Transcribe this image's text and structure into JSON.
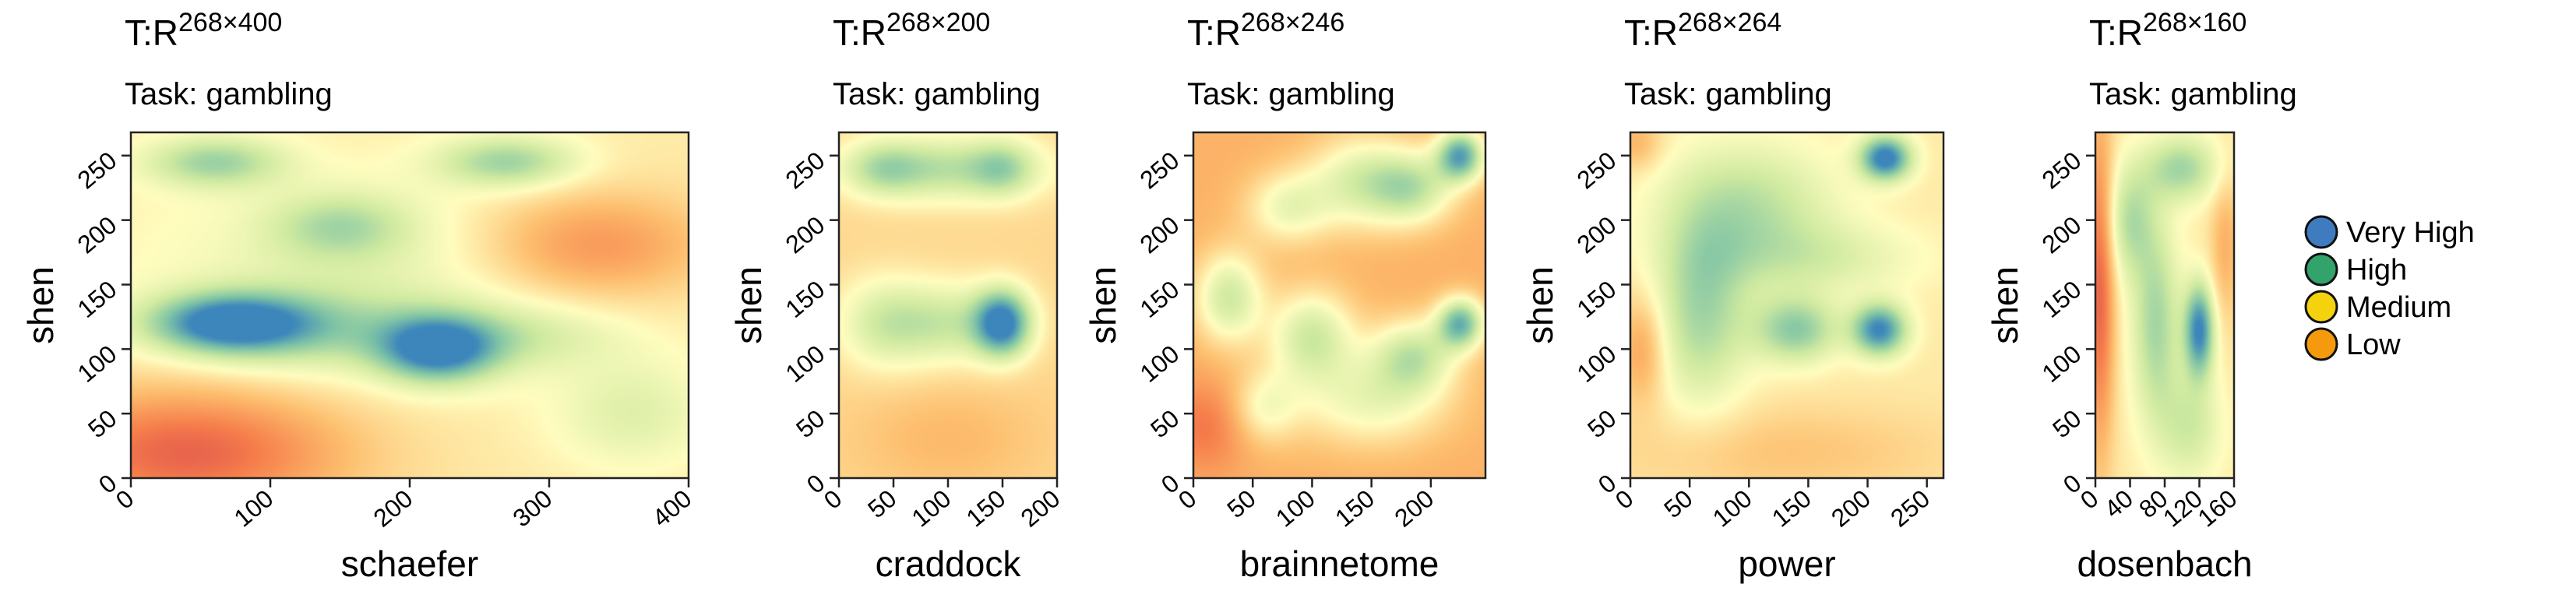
{
  "legend": {
    "items": [
      {
        "label": "Very High",
        "color": "#3F7CBF"
      },
      {
        "label": "High",
        "color": "#33A36C"
      },
      {
        "label": "Medium",
        "color": "#F4D20E"
      },
      {
        "label": "Low",
        "color": "#F59A0C"
      }
    ]
  },
  "colorscale": [
    "#D33E4F",
    "#F67E4B",
    "#FDBF6F",
    "#FFFDBF",
    "#CDE9A0",
    "#7FC4A5",
    "#3C86BC"
  ],
  "chart_data": [
    {
      "type": "heatmap",
      "title_main": "T:R",
      "title_sup": "268×400",
      "subtitle": "Task: gambling",
      "xlabel": "schaefer",
      "ylabel": "shen",
      "xlim": [
        0,
        400
      ],
      "ylim": [
        0,
        268
      ],
      "xticks": [
        0,
        100,
        200,
        300,
        400
      ],
      "xtick_labels": [
        "0",
        "100",
        "200",
        "300",
        "400"
      ],
      "yticks": [
        0,
        50,
        100,
        150,
        200,
        250
      ],
      "ytick_labels": [
        "0",
        "50",
        "100",
        "150",
        "200",
        "250"
      ],
      "base_level": 0.45,
      "blobs": [
        {
          "x": 70,
          "y": 120,
          "sx": 40,
          "sy": 16,
          "a": 0.55
        },
        {
          "x": 220,
          "y": 100,
          "sx": 30,
          "sy": 18,
          "a": 0.55
        },
        {
          "x": 130,
          "y": 115,
          "sx": 60,
          "sy": 22,
          "a": 0.2
        },
        {
          "x": 280,
          "y": 110,
          "sx": 50,
          "sy": 18,
          "a": 0.15
        },
        {
          "x": 60,
          "y": 245,
          "sx": 35,
          "sy": 14,
          "a": 0.3
        },
        {
          "x": 270,
          "y": 245,
          "sx": 35,
          "sy": 14,
          "a": 0.3
        },
        {
          "x": 150,
          "y": 195,
          "sx": 35,
          "sy": 18,
          "a": 0.22
        },
        {
          "x": 170,
          "y": 160,
          "sx": 120,
          "sy": 55,
          "a": 0.12
        },
        {
          "x": 40,
          "y": 20,
          "sx": 80,
          "sy": 35,
          "a": -0.35
        },
        {
          "x": 330,
          "y": 180,
          "sx": 60,
          "sy": 30,
          "a": -0.25
        },
        {
          "x": 360,
          "y": 50,
          "sx": 40,
          "sy": 30,
          "a": 0.15
        }
      ]
    },
    {
      "type": "heatmap",
      "title_main": "T:R",
      "title_sup": "268×200",
      "subtitle": "Task: gambling",
      "xlabel": "craddock",
      "ylabel": "shen",
      "xlim": [
        0,
        200
      ],
      "ylim": [
        0,
        268
      ],
      "xticks": [
        0,
        50,
        100,
        150,
        200
      ],
      "xtick_labels": [
        "0",
        "50",
        "100",
        "150",
        "200"
      ],
      "yticks": [
        0,
        50,
        100,
        150,
        200,
        250
      ],
      "ytick_labels": [
        "0",
        "50",
        "100",
        "150",
        "200",
        "250"
      ],
      "base_level": 0.4,
      "blobs": [
        {
          "x": 150,
          "y": 120,
          "sx": 18,
          "sy": 18,
          "a": 0.6
        },
        {
          "x": 100,
          "y": 120,
          "sx": 40,
          "sy": 22,
          "a": 0.25
        },
        {
          "x": 40,
          "y": 120,
          "sx": 30,
          "sy": 25,
          "a": 0.2
        },
        {
          "x": 100,
          "y": 240,
          "sx": 60,
          "sy": 18,
          "a": 0.3
        },
        {
          "x": 150,
          "y": 240,
          "sx": 20,
          "sy": 15,
          "a": 0.2
        },
        {
          "x": 40,
          "y": 240,
          "sx": 25,
          "sy": 15,
          "a": 0.2
        },
        {
          "x": 100,
          "y": 30,
          "sx": 60,
          "sy": 30,
          "a": -0.08
        }
      ]
    },
    {
      "type": "heatmap",
      "title_main": "T:R",
      "title_sup": "268×246",
      "subtitle": "Task: gambling",
      "xlabel": "brainnetome",
      "ylabel": "shen",
      "xlim": [
        0,
        246
      ],
      "ylim": [
        0,
        268
      ],
      "xticks": [
        0,
        50,
        100,
        150,
        200
      ],
      "xtick_labels": [
        "0",
        "50",
        "100",
        "150",
        "200"
      ],
      "yticks": [
        0,
        50,
        100,
        150,
        200,
        250
      ],
      "ytick_labels": [
        "0",
        "50",
        "100",
        "150",
        "200",
        "250"
      ],
      "base_level": 0.3,
      "blobs": [
        {
          "x": 225,
          "y": 250,
          "sx": 14,
          "sy": 14,
          "a": 0.6
        },
        {
          "x": 225,
          "y": 120,
          "sx": 14,
          "sy": 14,
          "a": 0.55
        },
        {
          "x": 185,
          "y": 225,
          "sx": 25,
          "sy": 20,
          "a": 0.35
        },
        {
          "x": 185,
          "y": 95,
          "sx": 25,
          "sy": 20,
          "a": 0.35
        },
        {
          "x": 100,
          "y": 110,
          "sx": 25,
          "sy": 25,
          "a": 0.35
        },
        {
          "x": 30,
          "y": 140,
          "sx": 20,
          "sy": 25,
          "a": 0.35
        },
        {
          "x": 140,
          "y": 230,
          "sx": 30,
          "sy": 25,
          "a": 0.3
        },
        {
          "x": 80,
          "y": 210,
          "sx": 25,
          "sy": 20,
          "a": 0.25
        },
        {
          "x": 150,
          "y": 60,
          "sx": 45,
          "sy": 25,
          "a": 0.25
        },
        {
          "x": 60,
          "y": 55,
          "sx": 20,
          "sy": 20,
          "a": 0.2
        },
        {
          "x": 10,
          "y": 40,
          "sx": 25,
          "sy": 25,
          "a": -0.15
        }
      ]
    },
    {
      "type": "heatmap",
      "title_main": "T:R",
      "title_sup": "268×264",
      "subtitle": "Task: gambling",
      "xlabel": "power",
      "ylabel": "shen",
      "xlim": [
        0,
        264
      ],
      "ylim": [
        0,
        268
      ],
      "xticks": [
        0,
        50,
        100,
        150,
        200,
        250
      ],
      "xtick_labels": [
        "0",
        "50",
        "100",
        "150",
        "200",
        "250"
      ],
      "yticks": [
        0,
        50,
        100,
        150,
        200,
        250
      ],
      "ytick_labels": [
        "0",
        "50",
        "100",
        "150",
        "200",
        "250"
      ],
      "base_level": 0.45,
      "blobs": [
        {
          "x": 215,
          "y": 248,
          "sx": 15,
          "sy": 12,
          "a": 0.6
        },
        {
          "x": 210,
          "y": 115,
          "sx": 16,
          "sy": 14,
          "a": 0.55
        },
        {
          "x": 140,
          "y": 115,
          "sx": 25,
          "sy": 18,
          "a": 0.35
        },
        {
          "x": 60,
          "y": 130,
          "sx": 28,
          "sy": 50,
          "a": 0.3
        },
        {
          "x": 100,
          "y": 210,
          "sx": 50,
          "sy": 35,
          "a": 0.25
        },
        {
          "x": 160,
          "y": 170,
          "sx": 60,
          "sy": 20,
          "a": 0.15
        },
        {
          "x": 10,
          "y": 100,
          "sx": 15,
          "sy": 30,
          "a": -0.2
        },
        {
          "x": 130,
          "y": 20,
          "sx": 100,
          "sy": 25,
          "a": -0.1
        },
        {
          "x": 5,
          "y": 260,
          "sx": 15,
          "sy": 15,
          "a": -0.15
        }
      ]
    },
    {
      "type": "heatmap",
      "title_main": "T:R",
      "title_sup": "268×160",
      "subtitle": "Task: gambling",
      "xlabel": "dosenbach",
      "ylabel": "shen",
      "xlim": [
        0,
        160
      ],
      "ylim": [
        0,
        268
      ],
      "xticks": [
        0,
        40,
        80,
        120,
        160
      ],
      "xtick_labels": [
        "0",
        "40",
        "80",
        "120",
        "160"
      ],
      "yticks": [
        0,
        50,
        100,
        150,
        200,
        250
      ],
      "ytick_labels": [
        "0",
        "50",
        "100",
        "150",
        "200",
        "250"
      ],
      "base_level": 0.45,
      "blobs": [
        {
          "x": 120,
          "y": 115,
          "sx": 12,
          "sy": 25,
          "a": 0.55
        },
        {
          "x": 70,
          "y": 120,
          "sx": 20,
          "sy": 55,
          "a": 0.3
        },
        {
          "x": 100,
          "y": 240,
          "sx": 30,
          "sy": 18,
          "a": 0.3
        },
        {
          "x": 40,
          "y": 200,
          "sx": 20,
          "sy": 30,
          "a": 0.25
        },
        {
          "x": 110,
          "y": 40,
          "sx": 25,
          "sy": 30,
          "a": 0.2
        },
        {
          "x": 5,
          "y": 150,
          "sx": 12,
          "sy": 90,
          "a": -0.35
        },
        {
          "x": 150,
          "y": 180,
          "sx": 12,
          "sy": 40,
          "a": -0.15
        }
      ]
    }
  ]
}
